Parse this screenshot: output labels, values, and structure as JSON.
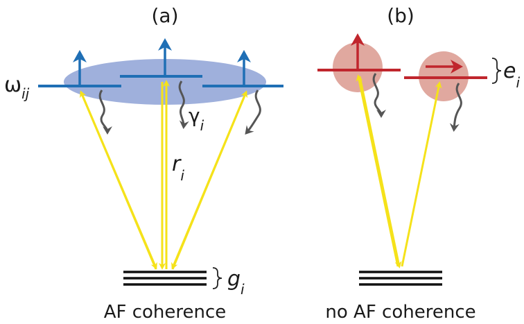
{
  "panels": {
    "a": {
      "label": "(a)",
      "caption": "AF coherence",
      "omega_symbol": "ω",
      "omega_subscript": "ij",
      "gamma_symbol": "γ",
      "gamma_subscript": "i",
      "r_symbol": "r",
      "r_subscript": "i",
      "g_symbol": "g",
      "g_subscript": "i"
    },
    "b": {
      "label": "(b)",
      "caption": "no AF coherence",
      "e_symbol": "e",
      "e_subscript": "i"
    }
  },
  "colors": {
    "blue_level": "#1f6fb5",
    "blue_ellipse": "#9fb0dc",
    "red_level": "#c0262d",
    "red_circle": "#e0a89f",
    "yellow_arrow": "#f5e21a",
    "decay_gray": "#555555",
    "ground_black": "#111111"
  },
  "icons": {
    "spin_up_arrow": "arrow-up-icon",
    "spin_right_arrow": "arrow-right-icon",
    "decay_arrow": "wavy-arrow-icon",
    "brace": "right-brace-icon"
  }
}
